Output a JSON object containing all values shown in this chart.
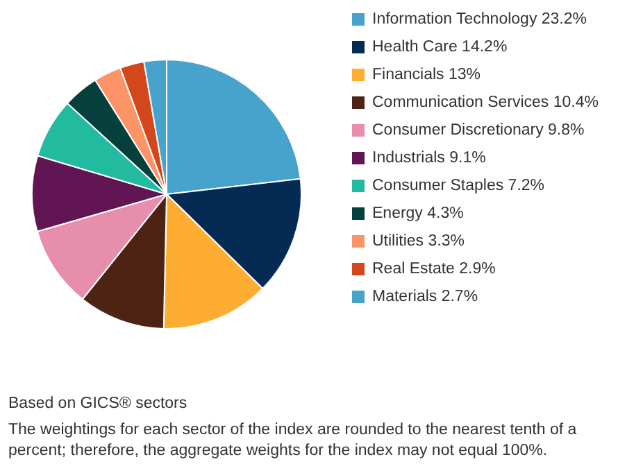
{
  "chart_data": {
    "type": "pie",
    "categories": [
      "Information Technology",
      "Health Care",
      "Financials",
      "Communication Services",
      "Consumer Discretionary",
      "Industrials",
      "Consumer Staples",
      "Energy",
      "Utilities",
      "Real Estate",
      "Materials"
    ],
    "values": [
      23.2,
      14.2,
      13,
      10.4,
      9.8,
      9.1,
      7.2,
      4.3,
      3.3,
      2.9,
      2.7
    ],
    "value_labels": [
      "23.2%",
      "14.2%",
      "13%",
      "10.4%",
      "9.8%",
      "9.1%",
      "7.2%",
      "4.3%",
      "3.3%",
      "2.9%",
      "2.7%"
    ],
    "colors": [
      "#47a3cc",
      "#052b55",
      "#fdae32",
      "#4d2414",
      "#e78eac",
      "#611553",
      "#22bba0",
      "#05403c",
      "#fc9468",
      "#d4461c",
      "#47a3cc"
    ],
    "legend": "right",
    "annotations": [
      "Based on GICS® sectors",
      "The weightings for each sector of the index are rounded to the nearest tenth of a percent; therefore, the aggregate weights for the index may not equal 100%."
    ]
  }
}
